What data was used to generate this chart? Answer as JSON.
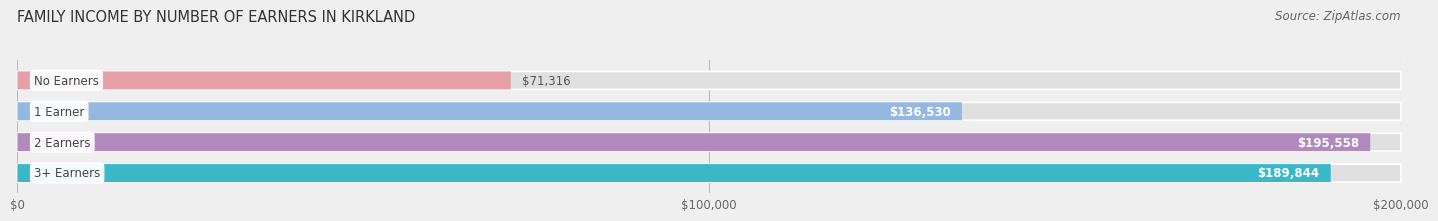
{
  "title": "FAMILY INCOME BY NUMBER OF EARNERS IN KIRKLAND",
  "source": "Source: ZipAtlas.com",
  "categories": [
    "No Earners",
    "1 Earner",
    "2 Earners",
    "3+ Earners"
  ],
  "values": [
    71316,
    136530,
    195558,
    189844
  ],
  "bar_colors": [
    "#e8a0a8",
    "#94b8e0",
    "#b08abd",
    "#3ab8c8"
  ],
  "value_labels": [
    "$71,316",
    "$136,530",
    "$195,558",
    "$189,844"
  ],
  "value_inside": [
    false,
    true,
    true,
    true
  ],
  "xlim": [
    0,
    200000
  ],
  "xticks": [
    0,
    100000,
    200000
  ],
  "xticklabels": [
    "$0",
    "$100,000",
    "$200,000"
  ],
  "background_color": "#efefef",
  "bar_bg_color": "#e0e0e0",
  "title_fontsize": 10.5,
  "source_fontsize": 8.5,
  "bar_height": 0.58,
  "bar_label_fontsize": 8.5,
  "value_label_fontsize": 8.5
}
